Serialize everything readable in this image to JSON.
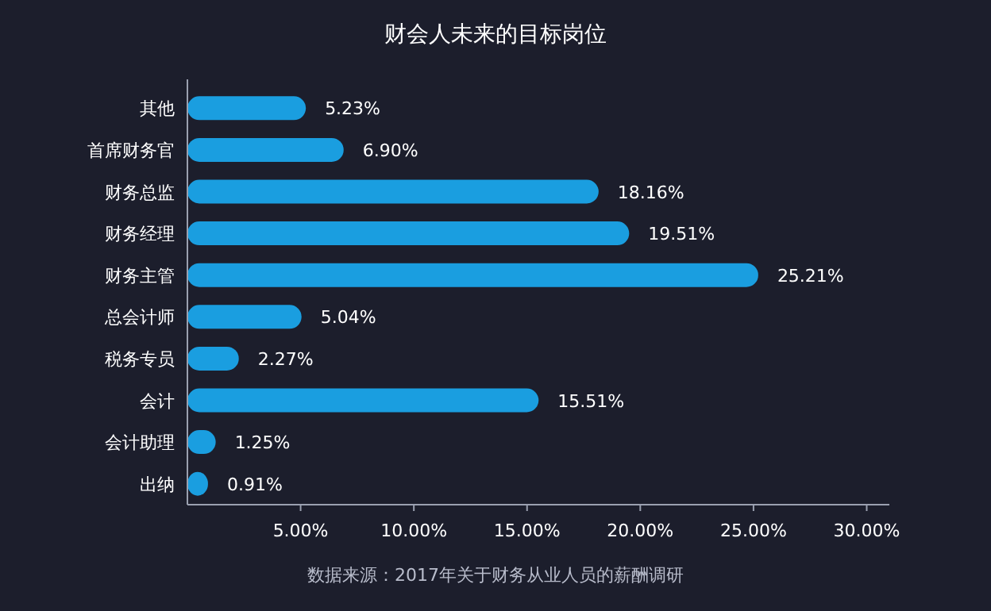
{
  "chart_data": {
    "type": "bar",
    "orientation": "horizontal",
    "title": "财会人未来的目标岗位",
    "categories": [
      "其他",
      "首席财务官",
      "财务总监",
      "财务经理",
      "财务主管",
      "总会计师",
      "税务专员",
      "会计",
      "会计助理",
      "出纳"
    ],
    "values": [
      5.23,
      6.9,
      18.16,
      19.51,
      25.21,
      5.04,
      2.27,
      15.51,
      1.25,
      0.91
    ],
    "value_labels": [
      "5.23%",
      "6.90%",
      "18.16%",
      "19.51%",
      "25.21%",
      "5.04%",
      "2.27%",
      "15.51%",
      "1.25%",
      "0.91%"
    ],
    "color": "#1a9ee0",
    "xlim": [
      0,
      31
    ],
    "xticks": [
      {
        "value": 5,
        "label": "5.00%"
      },
      {
        "value": 10,
        "label": "10.00%"
      },
      {
        "value": 15,
        "label": "15.00%"
      },
      {
        "value": 20,
        "label": "20.00%"
      },
      {
        "value": 25,
        "label": "25.00%"
      },
      {
        "value": 30,
        "label": "30.00%"
      }
    ],
    "annotations": [
      "数据来源：2017年关于财务从业人员的薪酬调研"
    ]
  }
}
